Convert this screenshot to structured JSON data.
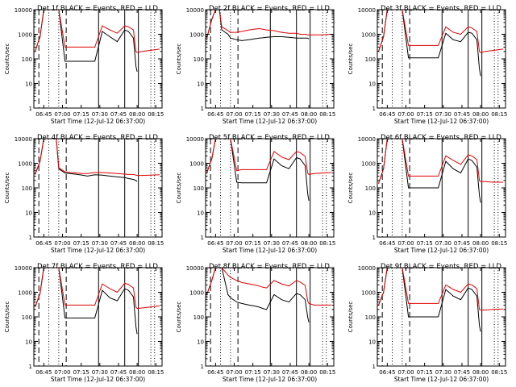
{
  "figure": {
    "x_tick_labels": [
      "06:45",
      "07:00",
      "07:15",
      "07:30",
      "07:45",
      "08:00",
      "08:15"
    ],
    "x_tick_minutes": [
      45,
      60,
      75,
      90,
      105,
      120,
      135
    ],
    "y_tick_labels": [
      "1",
      "10",
      "100",
      "1000",
      "10000"
    ],
    "y_tick_values": [
      1,
      10,
      100,
      1000,
      10000
    ],
    "xlabel": "Start Time (12-Jul-12 06:37:00)",
    "ylabel": "Counts/sec",
    "legend_text": "BLACK = Events, RED = LLD",
    "colors": {
      "events": "#000000",
      "lld": "#e00000",
      "axes": "#000000",
      "background": "#ffffff"
    }
  },
  "chart_data": [
    {
      "type": "line",
      "title": "Det 1f BLACK = Events, RED = LLD",
      "xlim": [
        37,
        140
      ],
      "ylim": [
        1,
        10000
      ],
      "yscale": "log",
      "xlabel": "Start Time (12-Jul-12 06:37:00)",
      "ylabel": "Counts/sec",
      "x": [
        38,
        42,
        45,
        48,
        50,
        55,
        57,
        62,
        66,
        72,
        76,
        80,
        83,
        86,
        92,
        98,
        104,
        110,
        113,
        117,
        119,
        120,
        124,
        130,
        138
      ],
      "series": [
        {
          "name": "Events",
          "values": [
            200,
            800,
            10000,
            10000,
            10000,
            10000,
            10000,
            80,
            80,
            80,
            80,
            80,
            80,
            80,
            1300,
            800,
            500,
            1500,
            1300,
            700,
            50,
            30,
            null,
            null,
            null
          ]
        },
        {
          "name": "LLD",
          "values": [
            200,
            800,
            10000,
            10000,
            10000,
            10000,
            10000,
            300,
            300,
            300,
            300,
            300,
            300,
            300,
            2200,
            1500,
            1100,
            2200,
            2000,
            1500,
            200,
            180,
            200,
            220,
            250
          ]
        }
      ],
      "events_label_in_title": true
    },
    {
      "type": "line",
      "title": "Det 2f BLACK = Events, RED = LLD",
      "xlim": [
        37,
        140
      ],
      "ylim": [
        1,
        10000
      ],
      "yscale": "log",
      "xlabel": "Start Time (12-Jul-12 06:37:00)",
      "ylabel": "Counts/sec",
      "x": [
        38,
        42,
        45,
        48,
        50,
        55,
        57,
        62,
        66,
        72,
        76,
        80,
        83,
        86,
        92,
        98,
        104,
        110,
        113,
        117,
        119,
        120,
        124,
        130,
        138
      ],
      "series": [
        {
          "name": "Events",
          "values": [
            700,
            4000,
            10000,
            10000,
            1500,
            1000,
            700,
            600,
            550,
            600,
            650,
            700,
            720,
            750,
            800,
            800,
            750,
            700,
            700,
            700,
            700,
            650,
            null,
            null,
            null
          ]
        },
        {
          "name": "LLD",
          "values": [
            700,
            4000,
            10000,
            10000,
            2000,
            1400,
            1200,
            1200,
            1300,
            1500,
            1600,
            1700,
            1600,
            1500,
            1400,
            1200,
            1100,
            1100,
            1000,
            1000,
            950,
            950,
            950,
            950,
            1000
          ]
        }
      ]
    },
    {
      "type": "line",
      "title": "Det 3f BLACK = Events, RED = LLD",
      "xlim": [
        37,
        140
      ],
      "ylim": [
        1,
        10000
      ],
      "yscale": "log",
      "xlabel": "Start Time (12-Jul-12 06:37:00)",
      "ylabel": "Counts/sec",
      "x": [
        38,
        42,
        45,
        48,
        50,
        55,
        57,
        62,
        66,
        72,
        76,
        80,
        83,
        86,
        92,
        98,
        104,
        110,
        113,
        117,
        119,
        120,
        124,
        130,
        138
      ],
      "series": [
        {
          "name": "Events",
          "values": [
            200,
            800,
            10000,
            10000,
            10000,
            10000,
            10000,
            110,
            110,
            110,
            110,
            110,
            110,
            110,
            1100,
            600,
            500,
            1200,
            1100,
            600,
            40,
            20,
            null,
            null,
            null
          ]
        },
        {
          "name": "LLD",
          "values": [
            200,
            800,
            10000,
            10000,
            10000,
            10000,
            10000,
            350,
            350,
            350,
            350,
            350,
            350,
            350,
            2000,
            1200,
            1000,
            2000,
            1800,
            1300,
            200,
            180,
            200,
            220,
            250
          ]
        }
      ]
    },
    {
      "type": "line",
      "title": "Det 4f BLACK = Events, RED = LLD",
      "xlim": [
        37,
        140
      ],
      "ylim": [
        1,
        10000
      ],
      "yscale": "log",
      "xlabel": "Start Time (12-Jul-12 06:37:00)",
      "ylabel": "Counts/sec",
      "x": [
        38,
        42,
        45,
        48,
        50,
        55,
        57,
        62,
        66,
        72,
        76,
        80,
        83,
        86,
        92,
        98,
        104,
        110,
        113,
        117,
        119,
        120,
        124,
        130,
        138
      ],
      "series": [
        {
          "name": "Events",
          "values": [
            350,
            1200,
            10000,
            10000,
            10000,
            10000,
            600,
            400,
            380,
            350,
            330,
            300,
            320,
            340,
            330,
            300,
            280,
            260,
            240,
            220,
            200,
            180,
            null,
            null,
            null
          ]
        },
        {
          "name": "LLD",
          "values": [
            350,
            1200,
            10000,
            10000,
            10000,
            10000,
            650,
            450,
            420,
            400,
            380,
            380,
            400,
            420,
            420,
            400,
            380,
            360,
            350,
            350,
            330,
            320,
            320,
            330,
            340
          ]
        }
      ]
    },
    {
      "type": "line",
      "title": "Det 5f BLACK = Events, RED = LLD",
      "xlim": [
        37,
        140
      ],
      "ylim": [
        1,
        10000
      ],
      "yscale": "log",
      "xlabel": "Start Time (12-Jul-12 06:37:00)",
      "ylabel": "Counts/sec",
      "x": [
        38,
        42,
        45,
        48,
        50,
        55,
        57,
        62,
        66,
        72,
        76,
        80,
        83,
        86,
        92,
        98,
        104,
        110,
        113,
        117,
        119,
        120,
        124,
        130,
        138
      ],
      "series": [
        {
          "name": "Events",
          "values": [
            400,
            1500,
            10000,
            10000,
            10000,
            10000,
            10000,
            170,
            160,
            160,
            160,
            160,
            160,
            160,
            1500,
            800,
            600,
            1700,
            1500,
            800,
            60,
            30,
            null,
            null,
            null
          ]
        },
        {
          "name": "LLD",
          "values": [
            400,
            1500,
            10000,
            10000,
            10000,
            10000,
            10000,
            500,
            550,
            550,
            550,
            550,
            550,
            550,
            3000,
            1800,
            1400,
            3000,
            2700,
            1900,
            400,
            350,
            380,
            400,
            420
          ]
        }
      ]
    },
    {
      "type": "line",
      "title": "Det 6f BLACK = Events, RED = LLD",
      "xlim": [
        37,
        140
      ],
      "ylim": [
        1,
        10000
      ],
      "yscale": "log",
      "xlabel": "Start Time (12-Jul-12 06:37:00)",
      "ylabel": "Counts/sec",
      "x": [
        38,
        42,
        45,
        48,
        50,
        55,
        57,
        62,
        66,
        72,
        76,
        80,
        83,
        86,
        92,
        98,
        104,
        110,
        113,
        117,
        119,
        120,
        124,
        130,
        138
      ],
      "series": [
        {
          "name": "Events",
          "values": [
            150,
            600,
            10000,
            10000,
            10000,
            10000,
            10000,
            100,
            100,
            100,
            100,
            100,
            100,
            100,
            1200,
            600,
            400,
            1500,
            1300,
            700,
            50,
            25,
            null,
            null,
            null
          ]
        },
        {
          "name": "LLD",
          "values": [
            150,
            600,
            10000,
            10000,
            10000,
            10000,
            10000,
            300,
            300,
            300,
            300,
            300,
            300,
            300,
            2000,
            1300,
            900,
            2200,
            2000,
            1400,
            200,
            180,
            180,
            170,
            170
          ]
        }
      ]
    },
    {
      "type": "line",
      "title": "Det 7f BLACK = Events, RED = LLD",
      "xlim": [
        37,
        140
      ],
      "ylim": [
        1,
        10000
      ],
      "yscale": "log",
      "xlabel": "Start Time (12-Jul-12 06:37:00)",
      "ylabel": "Counts/sec",
      "x": [
        38,
        42,
        45,
        48,
        50,
        55,
        57,
        62,
        66,
        72,
        76,
        80,
        83,
        86,
        92,
        98,
        104,
        110,
        113,
        117,
        119,
        120,
        124,
        130,
        138
      ],
      "series": [
        {
          "name": "Events",
          "values": [
            250,
            900,
            10000,
            10000,
            10000,
            10000,
            10000,
            90,
            90,
            90,
            90,
            90,
            90,
            90,
            1200,
            600,
            450,
            1400,
            1200,
            650,
            40,
            20,
            null,
            null,
            null
          ]
        },
        {
          "name": "LLD",
          "values": [
            250,
            900,
            10000,
            10000,
            10000,
            10000,
            10000,
            300,
            300,
            300,
            300,
            300,
            300,
            300,
            2200,
            1400,
            1000,
            2300,
            2100,
            1500,
            250,
            220,
            230,
            250,
            280
          ]
        }
      ]
    },
    {
      "type": "line",
      "title": "Det 8f BLACK = Events, RED = LLD",
      "xlim": [
        37,
        140
      ],
      "ylim": [
        1,
        10000
      ],
      "yscale": "log",
      "xlabel": "Start Time (12-Jul-12 06:37:00)",
      "ylabel": "Counts/sec",
      "x": [
        38,
        42,
        45,
        48,
        50,
        55,
        57,
        62,
        66,
        72,
        76,
        80,
        83,
        86,
        92,
        98,
        104,
        110,
        113,
        117,
        119,
        120,
        124,
        130,
        138
      ],
      "series": [
        {
          "name": "Events",
          "values": [
            800,
            3000,
            10000,
            10000,
            10000,
            800,
            600,
            400,
            350,
            300,
            280,
            250,
            220,
            200,
            800,
            500,
            400,
            900,
            800,
            500,
            100,
            60,
            null,
            null,
            null
          ]
        },
        {
          "name": "LLD",
          "values": [
            800,
            3000,
            10000,
            10000,
            10000,
            5000,
            4000,
            3000,
            2500,
            2200,
            2000,
            1800,
            1600,
            1500,
            3000,
            2200,
            1800,
            3000,
            2600,
            1900,
            450,
            350,
            300,
            300,
            300
          ]
        }
      ]
    },
    {
      "type": "line",
      "title": "Det 9f BLACK = Events, RED = LLD",
      "xlim": [
        37,
        140
      ],
      "ylim": [
        1,
        10000
      ],
      "yscale": "log",
      "xlabel": "Start Time (12-Jul-12 06:37:00)",
      "ylabel": "Counts/sec",
      "x": [
        38,
        42,
        45,
        48,
        50,
        55,
        57,
        62,
        66,
        72,
        76,
        80,
        83,
        86,
        92,
        98,
        104,
        110,
        113,
        117,
        119,
        120,
        124,
        130,
        138
      ],
      "series": [
        {
          "name": "Events",
          "values": [
            300,
            1000,
            10000,
            10000,
            10000,
            10000,
            10000,
            100,
            100,
            100,
            100,
            100,
            100,
            100,
            1300,
            700,
            500,
            1500,
            1300,
            700,
            45,
            25,
            null,
            null,
            null
          ]
        },
        {
          "name": "LLD",
          "values": [
            300,
            1000,
            10000,
            10000,
            10000,
            10000,
            10000,
            350,
            350,
            350,
            350,
            350,
            350,
            350,
            2000,
            1300,
            1000,
            2200,
            2000,
            1400,
            200,
            190,
            190,
            200,
            210
          ]
        }
      ]
    }
  ],
  "markers": {
    "dashed_minutes": [
      41,
      63
    ],
    "dotted_minutes": [
      49,
      57,
      131,
      134
    ],
    "solid_minutes": [
      89,
      110,
      121
    ]
  }
}
